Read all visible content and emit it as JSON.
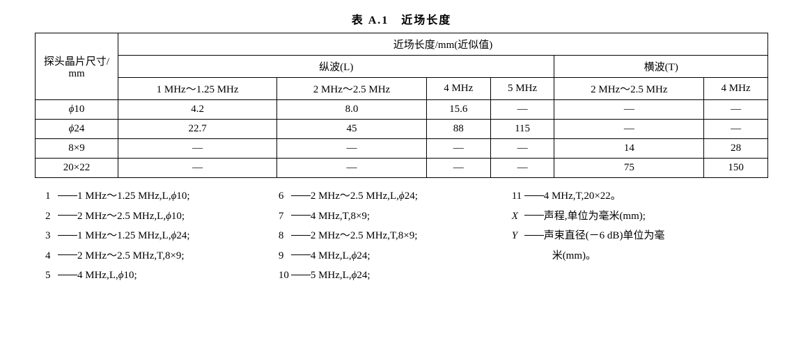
{
  "title": "表 A.1　近场长度",
  "table": {
    "rowhead": "探头晶片尺寸/\nmm",
    "superhead": "近场长度/mm(近似值)",
    "group_L": "纵波(L)",
    "group_T": "横波(T)",
    "cols": {
      "L1": "1 MHz～1.25 MHz",
      "L2": "2 MHz～2.5 MHz",
      "L3": "4 MHz",
      "L4": "5 MHz",
      "T1": "2 MHz～2.5 MHz",
      "T2": "4 MHz"
    },
    "rows": [
      {
        "size": "ϕ10",
        "L1": "4.2",
        "L2": "8.0",
        "L3": "15.6",
        "L4": "—",
        "T1": "—",
        "T2": "—"
      },
      {
        "size": "ϕ24",
        "L1": "22.7",
        "L2": "45",
        "L3": "88",
        "L4": "115",
        "T1": "—",
        "T2": "—"
      },
      {
        "size": "8×9",
        "L1": "—",
        "L2": "—",
        "L3": "—",
        "L4": "—",
        "T1": "14",
        "T2": "28"
      },
      {
        "size": "20×22",
        "L1": "—",
        "L2": "—",
        "L3": "—",
        "L4": "—",
        "T1": "75",
        "T2": "150"
      }
    ]
  },
  "legend": {
    "col1": [
      {
        "n": "1",
        "t": "1 MHz～1.25 MHz,L,ϕ10;"
      },
      {
        "n": "2",
        "t": "2 MHz～2.5 MHz,L,ϕ10;"
      },
      {
        "n": "3",
        "t": "1 MHz～1.25 MHz,L,ϕ24;"
      },
      {
        "n": "4",
        "t": "2 MHz～2.5 MHz,T,8×9;"
      },
      {
        "n": "5",
        "t": "4 MHz,L,ϕ10;"
      }
    ],
    "col2": [
      {
        "n": "6",
        "t": "2 MHz～2.5 MHz,L,ϕ24;"
      },
      {
        "n": "7",
        "t": "4 MHz,T,8×9;"
      },
      {
        "n": "8",
        "t": "2 MHz～2.5 MHz,T,8×9;"
      },
      {
        "n": "9",
        "t": "4 MHz,L,ϕ24;"
      },
      {
        "n": "10",
        "t": "5 MHz,L,ϕ24;"
      }
    ],
    "col3": [
      {
        "n": "11",
        "t": "4 MHz,T,20×22。"
      },
      {
        "n": "X",
        "t": "声程,单位为毫米(mm);",
        "ital": true
      },
      {
        "n": "Y",
        "t": "声束直径(－6 dB)单位为毫",
        "ital": true
      },
      {
        "cont": "米(mm)。"
      }
    ]
  },
  "style": {
    "border_color": "#000000",
    "bg": "#ffffff",
    "text": "#000000",
    "title_fontsize": 16,
    "body_fontsize": 15,
    "line_height": 1.9
  }
}
